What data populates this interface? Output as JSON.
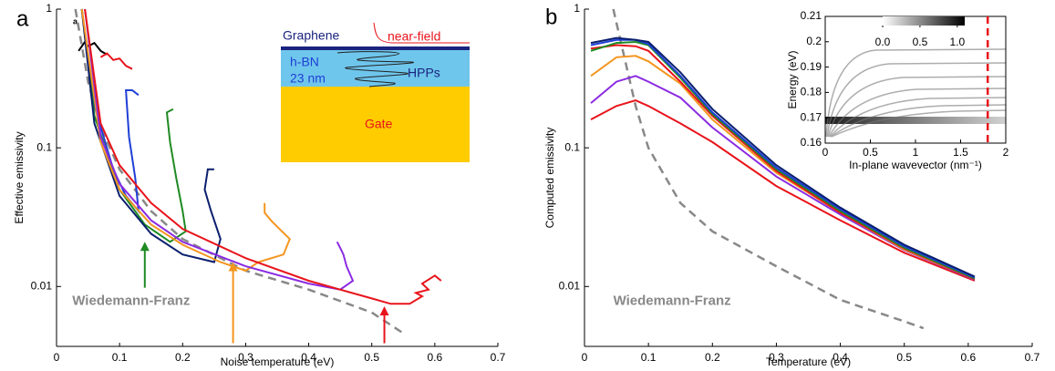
{
  "chart_data": [
    {
      "type": "line",
      "panel_label": "a",
      "corner_note": "a",
      "xlabel": "Noise temperature (eV)",
      "ylabel": "Effective emissivity",
      "xlim": [
        0,
        0.7
      ],
      "ylim": [
        0.0037,
        1
      ],
      "ylog": true,
      "xticks": [
        0,
        0.1,
        0.2,
        0.3,
        0.4,
        0.5,
        0.6,
        0.7
      ],
      "yticks": [
        0.01,
        0.1,
        1
      ],
      "annotation": "Wiedemann-Franz",
      "series": [
        {
          "color": "#888888",
          "dashed": true,
          "x": [
            0.03,
            0.05,
            0.07,
            0.1,
            0.15,
            0.2,
            0.3,
            0.4,
            0.5,
            0.55
          ],
          "values": [
            1,
            0.3,
            0.14,
            0.07,
            0.035,
            0.022,
            0.013,
            0.0095,
            0.0065,
            0.0046
          ]
        },
        {
          "color": "#000000",
          "x": [
            0.035,
            0.045,
            0.05,
            0.06,
            0.07,
            0.08
          ],
          "values": [
            0.5,
            0.58,
            0.54,
            0.57,
            0.5,
            0.47
          ]
        },
        {
          "color": "#e8141b",
          "x": [
            0.07,
            0.08,
            0.09,
            0.1,
            0.11,
            0.12
          ],
          "values": [
            0.45,
            0.48,
            0.43,
            0.44,
            0.39,
            0.37
          ]
        },
        {
          "color": "#1f3fd6",
          "x": [
            0.04,
            0.06,
            0.09,
            0.11,
            0.13,
            0.125,
            0.115,
            0.11,
            0.12,
            0.13
          ],
          "values": [
            1,
            0.2,
            0.07,
            0.045,
            0.035,
            0.06,
            0.12,
            0.26,
            0.26,
            0.24
          ]
        },
        {
          "color": "#1e8a22",
          "x": [
            0.04,
            0.06,
            0.1,
            0.14,
            0.18,
            0.205,
            0.2,
            0.19,
            0.18,
            0.175,
            0.185
          ],
          "values": [
            1,
            0.17,
            0.05,
            0.028,
            0.021,
            0.025,
            0.035,
            0.06,
            0.11,
            0.18,
            0.19
          ]
        },
        {
          "color": "#0a1f6e",
          "x": [
            0.04,
            0.06,
            0.1,
            0.15,
            0.2,
            0.25,
            0.26,
            0.245,
            0.235,
            0.24,
            0.25
          ],
          "values": [
            1,
            0.15,
            0.045,
            0.024,
            0.017,
            0.015,
            0.022,
            0.035,
            0.05,
            0.07,
            0.07
          ]
        },
        {
          "color": "#f4951f",
          "x": [
            0.04,
            0.07,
            0.1,
            0.15,
            0.2,
            0.26,
            0.3,
            0.32,
            0.36,
            0.37,
            0.35,
            0.34,
            0.33,
            0.33
          ],
          "values": [
            1,
            0.11,
            0.05,
            0.028,
            0.02,
            0.015,
            0.013,
            0.015,
            0.017,
            0.022,
            0.027,
            0.03,
            0.034,
            0.04
          ]
        },
        {
          "color": "#8a2be2",
          "x": [
            0.045,
            0.07,
            0.1,
            0.15,
            0.2,
            0.3,
            0.4,
            0.45,
            0.47,
            0.46,
            0.455,
            0.45,
            0.445
          ],
          "values": [
            1,
            0.12,
            0.055,
            0.03,
            0.021,
            0.014,
            0.0105,
            0.0095,
            0.011,
            0.014,
            0.017,
            0.019,
            0.021
          ]
        },
        {
          "color": "#e8141b",
          "x": [
            0.045,
            0.07,
            0.1,
            0.15,
            0.2,
            0.3,
            0.4,
            0.45,
            0.5,
            0.53,
            0.56,
            0.58,
            0.57,
            0.59,
            0.58,
            0.6,
            0.61
          ],
          "values": [
            1,
            0.15,
            0.075,
            0.04,
            0.026,
            0.016,
            0.011,
            0.0095,
            0.0082,
            0.0075,
            0.0075,
            0.0085,
            0.009,
            0.0095,
            0.0105,
            0.012,
            0.011
          ]
        }
      ],
      "arrows": [
        {
          "x": 0.14,
          "y": 0.021,
          "y_tail": 0.0098,
          "color": "#1e8a22"
        },
        {
          "x": 0.28,
          "y": 0.015,
          "y_tail": 0.0039,
          "color": "#f4951f"
        },
        {
          "x": 0.52,
          "y": 0.0072,
          "y_tail": 0.0039,
          "color": "#e8141b"
        }
      ],
      "inset": {
        "graphene": "Graphene",
        "near_field": "near-field",
        "hbn": "h-BN",
        "thickness": "23 nm",
        "hpps": "HPPs",
        "gate": "Gate"
      }
    },
    {
      "type": "line",
      "panel_label": "b",
      "xlabel": "Temperature (eV)",
      "ylabel": "Computed emissivity",
      "xlim": [
        0,
        0.7
      ],
      "ylim": [
        0.0037,
        1
      ],
      "ylog": true,
      "xticks": [
        0,
        0.1,
        0.2,
        0.3,
        0.4,
        0.5,
        0.6,
        0.7
      ],
      "yticks": [
        0.01,
        0.1,
        1
      ],
      "annotation": "Wiedemann-Franz",
      "series": [
        {
          "color": "#888888",
          "dashed": true,
          "x": [
            0.045,
            0.06,
            0.08,
            0.1,
            0.15,
            0.2,
            0.3,
            0.4,
            0.5,
            0.53
          ],
          "values": [
            1,
            0.5,
            0.2,
            0.1,
            0.04,
            0.025,
            0.014,
            0.008,
            0.0056,
            0.005
          ]
        },
        {
          "color": "#e8141b",
          "x": [
            0.01,
            0.05,
            0.08,
            0.1,
            0.15,
            0.2,
            0.3,
            0.4,
            0.5,
            0.61
          ],
          "values": [
            0.16,
            0.2,
            0.22,
            0.2,
            0.15,
            0.11,
            0.053,
            0.03,
            0.0175,
            0.011
          ]
        },
        {
          "color": "#8a2be2",
          "x": [
            0.01,
            0.05,
            0.08,
            0.1,
            0.15,
            0.2,
            0.3,
            0.4,
            0.5,
            0.61
          ],
          "values": [
            0.21,
            0.3,
            0.33,
            0.3,
            0.23,
            0.14,
            0.062,
            0.033,
            0.0183,
            0.0112
          ]
        },
        {
          "color": "#f4951f",
          "x": [
            0.01,
            0.05,
            0.08,
            0.1,
            0.15,
            0.2,
            0.3,
            0.4,
            0.5,
            0.61
          ],
          "values": [
            0.33,
            0.45,
            0.46,
            0.42,
            0.29,
            0.16,
            0.066,
            0.034,
            0.0185,
            0.0113
          ]
        },
        {
          "color": "#e8141b",
          "x": [
            0.01,
            0.05,
            0.08,
            0.1,
            0.15,
            0.2,
            0.3,
            0.4,
            0.5,
            0.61
          ],
          "values": [
            0.52,
            0.55,
            0.54,
            0.5,
            0.3,
            0.17,
            0.068,
            0.034,
            0.0188,
            0.0113
          ]
        },
        {
          "color": "#1e8a22",
          "x": [
            0.01,
            0.05,
            0.08,
            0.1,
            0.15,
            0.2,
            0.3,
            0.4,
            0.5,
            0.61
          ],
          "values": [
            0.5,
            0.57,
            0.58,
            0.55,
            0.32,
            0.175,
            0.07,
            0.035,
            0.019,
            0.0114
          ]
        },
        {
          "color": "#1f3fd6",
          "x": [
            0.01,
            0.05,
            0.08,
            0.1,
            0.15,
            0.2,
            0.3,
            0.4,
            0.5,
            0.61
          ],
          "values": [
            0.55,
            0.6,
            0.6,
            0.56,
            0.33,
            0.18,
            0.072,
            0.036,
            0.0195,
            0.0116
          ]
        },
        {
          "color": "#0a1f6e",
          "x": [
            0.01,
            0.05,
            0.08,
            0.1,
            0.15,
            0.2,
            0.3,
            0.4,
            0.5,
            0.61
          ],
          "values": [
            0.57,
            0.62,
            0.6,
            0.58,
            0.35,
            0.19,
            0.075,
            0.037,
            0.02,
            0.0118
          ]
        }
      ],
      "inset": {
        "type": "heatmap",
        "xlabel": "In-plane wavevector (nm⁻¹)",
        "ylabel": "Energy (eV)",
        "xlim": [
          0,
          2
        ],
        "ylim": [
          0.16,
          0.21
        ],
        "xticks": [
          0,
          0.5,
          1,
          1.5,
          2
        ],
        "yticks": [
          0.16,
          0.17,
          0.18,
          0.19,
          0.2,
          0.21
        ],
        "colorbar_lim": [
          0,
          1.1
        ],
        "colorbar_ticks": [
          {
            "value": 0,
            "label": "0.0"
          },
          {
            "value": 0.5,
            "label": "0.5"
          },
          {
            "value": 1,
            "label": "1.0"
          }
        ],
        "marker_x": 1.8,
        "marker_color": "#e8141b"
      }
    }
  ]
}
